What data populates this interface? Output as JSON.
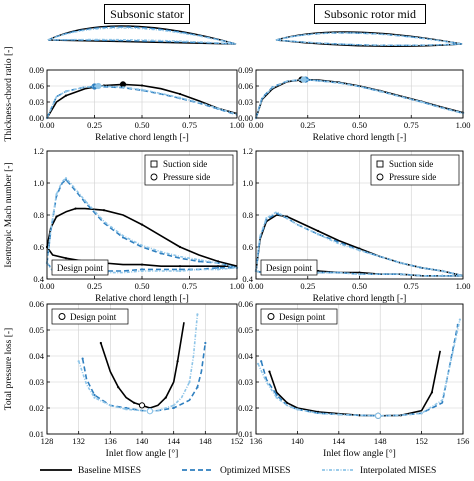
{
  "headers": {
    "left": "Subsonic stator",
    "right": "Subsonic rotor mid"
  },
  "colors": {
    "baseline": "#000000",
    "optimized": "#2f7fbf",
    "interpolated": "#8fc5e8"
  },
  "legend": {
    "baseline": "Baseline MISES",
    "optimized": "Optimized MISES",
    "interpolated": "Interpolated MISES"
  },
  "chart_data": [
    {
      "id": "stator-thickness",
      "type": "line",
      "xlabel": "Relative chord length [-]",
      "ylabel": "Thickness-chord ratio [-]",
      "xlim": [
        0,
        1
      ],
      "ylim": [
        0,
        0.09
      ],
      "xticks": [
        "0.00",
        "0.25",
        "0.50",
        "0.75",
        "1.00"
      ],
      "yticks": [
        "0.00",
        "0.03",
        "0.06",
        "0.09"
      ],
      "grid": true,
      "series": [
        {
          "name": "Baseline MISES",
          "x": [
            0,
            0.05,
            0.1,
            0.2,
            0.3,
            0.4,
            0.5,
            0.6,
            0.7,
            0.8,
            0.9,
            1.0
          ],
          "y": [
            0,
            0.03,
            0.042,
            0.055,
            0.061,
            0.063,
            0.061,
            0.055,
            0.045,
            0.032,
            0.018,
            0.008
          ],
          "marker": {
            "x": 0.4,
            "y": 0.063
          }
        },
        {
          "name": "Optimized MISES",
          "x": [
            0,
            0.05,
            0.1,
            0.2,
            0.27,
            0.4,
            0.5,
            0.6,
            0.7,
            0.8,
            0.9,
            1.0
          ],
          "y": [
            0,
            0.04,
            0.05,
            0.058,
            0.059,
            0.057,
            0.052,
            0.045,
            0.037,
            0.028,
            0.017,
            0.006
          ],
          "marker": {
            "x": 0.25,
            "y": 0.059
          }
        },
        {
          "name": "Interpolated MISES",
          "x": [
            0,
            0.05,
            0.1,
            0.2,
            0.27,
            0.4,
            0.5,
            0.6,
            0.7,
            0.8,
            0.9,
            1.0
          ],
          "y": [
            0,
            0.04,
            0.05,
            0.058,
            0.06,
            0.058,
            0.053,
            0.046,
            0.038,
            0.029,
            0.018,
            0.007
          ],
          "marker": {
            "x": 0.27,
            "y": 0.06
          }
        }
      ]
    },
    {
      "id": "rotor-thickness",
      "type": "line",
      "xlabel": "Relative chord length [-]",
      "ylabel": "",
      "xlim": [
        0,
        1
      ],
      "ylim": [
        0,
        0.09
      ],
      "xticks": [
        "0.00",
        "0.25",
        "0.50",
        "0.75",
        "1.00"
      ],
      "yticks": [
        "0.00",
        "0.03",
        "0.06",
        "0.09"
      ],
      "grid": true,
      "series": [
        {
          "name": "Baseline MISES",
          "x": [
            0,
            0.03,
            0.08,
            0.15,
            0.23,
            0.3,
            0.4,
            0.5,
            0.6,
            0.7,
            0.8,
            0.9,
            1.0
          ],
          "y": [
            0,
            0.035,
            0.055,
            0.068,
            0.072,
            0.071,
            0.067,
            0.06,
            0.051,
            0.041,
            0.031,
            0.02,
            0.01
          ],
          "marker": {
            "x": 0.22,
            "y": 0.072
          }
        },
        {
          "name": "Optimized MISES",
          "x": [
            0,
            0.03,
            0.08,
            0.15,
            0.23,
            0.3,
            0.4,
            0.5,
            0.6,
            0.7,
            0.8,
            0.9,
            1.0
          ],
          "y": [
            0,
            0.038,
            0.058,
            0.069,
            0.072,
            0.07,
            0.066,
            0.059,
            0.05,
            0.04,
            0.03,
            0.019,
            0.009
          ],
          "marker": {
            "x": 0.24,
            "y": 0.072
          }
        },
        {
          "name": "Interpolated MISES",
          "x": [
            0,
            0.03,
            0.08,
            0.15,
            0.23,
            0.3,
            0.4,
            0.5,
            0.6,
            0.7,
            0.8,
            0.9,
            1.0
          ],
          "y": [
            0,
            0.037,
            0.057,
            0.069,
            0.072,
            0.07,
            0.066,
            0.059,
            0.05,
            0.04,
            0.03,
            0.019,
            0.009
          ],
          "marker": {
            "x": 0.23,
            "y": 0.072
          }
        }
      ]
    },
    {
      "id": "stator-mach",
      "type": "line",
      "xlabel": "Relative chord length [-]",
      "ylabel": "Isentropic Mach number [-]",
      "xlim": [
        0,
        1
      ],
      "ylim": [
        0.4,
        1.2
      ],
      "xticks": [
        "0.00",
        "0.25",
        "0.50",
        "0.75",
        "1.00"
      ],
      "yticks": [
        "0.4",
        "0.6",
        "0.8",
        "1.0",
        "1.2"
      ],
      "grid": true,
      "legend": {
        "suction": "Suction side",
        "pressure": "Pressure side",
        "placement": "top-right"
      },
      "annotation": "Design point",
      "series": [
        {
          "name": "Baseline MISES suction",
          "x": [
            0,
            0.02,
            0.05,
            0.1,
            0.15,
            0.2,
            0.3,
            0.4,
            0.5,
            0.6,
            0.7,
            0.8,
            0.9,
            1.0
          ],
          "y": [
            0.6,
            0.72,
            0.79,
            0.82,
            0.84,
            0.84,
            0.83,
            0.8,
            0.74,
            0.67,
            0.6,
            0.55,
            0.51,
            0.48
          ]
        },
        {
          "name": "Baseline MISES pressure",
          "x": [
            0,
            0.03,
            0.1,
            0.2,
            0.3,
            0.4,
            0.5,
            0.6,
            0.7,
            0.8,
            0.9,
            1.0
          ],
          "y": [
            0.6,
            0.55,
            0.53,
            0.51,
            0.5,
            0.49,
            0.49,
            0.48,
            0.48,
            0.48,
            0.48,
            0.48
          ]
        },
        {
          "name": "Optimized MISES suction",
          "x": [
            0,
            0.02,
            0.05,
            0.08,
            0.1,
            0.13,
            0.2,
            0.3,
            0.4,
            0.5,
            0.6,
            0.7,
            0.8,
            0.9,
            1.0
          ],
          "y": [
            0.5,
            0.7,
            0.92,
            1.0,
            1.02,
            0.98,
            0.88,
            0.75,
            0.66,
            0.6,
            0.56,
            0.53,
            0.51,
            0.5,
            0.47
          ]
        },
        {
          "name": "Optimized MISES pressure",
          "x": [
            0,
            0.03,
            0.1,
            0.2,
            0.3,
            0.4,
            0.5,
            0.6,
            0.7,
            0.8,
            0.9,
            1.0
          ],
          "y": [
            0.5,
            0.46,
            0.45,
            0.45,
            0.45,
            0.45,
            0.46,
            0.46,
            0.46,
            0.46,
            0.47,
            0.47
          ]
        },
        {
          "name": "Interpolated MISES suction",
          "x": [
            0,
            0.02,
            0.05,
            0.08,
            0.1,
            0.13,
            0.2,
            0.3,
            0.4,
            0.5,
            0.6,
            0.7,
            0.8,
            0.9,
            1.0
          ],
          "y": [
            0.5,
            0.71,
            0.93,
            1.01,
            1.03,
            0.99,
            0.89,
            0.76,
            0.67,
            0.61,
            0.57,
            0.54,
            0.52,
            0.5,
            0.47
          ]
        },
        {
          "name": "Interpolated MISES pressure",
          "x": [
            0,
            0.03,
            0.1,
            0.2,
            0.3,
            0.4,
            0.5,
            0.6,
            0.7,
            0.8,
            0.9,
            1.0
          ],
          "y": [
            0.5,
            0.45,
            0.44,
            0.44,
            0.44,
            0.44,
            0.45,
            0.45,
            0.45,
            0.46,
            0.46,
            0.47
          ]
        }
      ]
    },
    {
      "id": "rotor-mach",
      "type": "line",
      "xlabel": "Relative chord length [-]",
      "ylabel": "",
      "xlim": [
        0,
        1
      ],
      "ylim": [
        0.4,
        1.2
      ],
      "xticks": [
        "0.00",
        "0.25",
        "0.50",
        "0.75",
        "1.00"
      ],
      "yticks": [
        "0.4",
        "0.6",
        "0.8",
        "1.0",
        "1.2"
      ],
      "grid": true,
      "legend": {
        "suction": "Suction side",
        "pressure": "Pressure side",
        "placement": "top-right"
      },
      "annotation": "Design point",
      "series": [
        {
          "name": "Baseline MISES suction",
          "x": [
            0,
            0.02,
            0.05,
            0.1,
            0.15,
            0.2,
            0.3,
            0.4,
            0.5,
            0.6,
            0.7,
            0.8,
            0.9,
            1.0
          ],
          "y": [
            0.45,
            0.65,
            0.76,
            0.8,
            0.79,
            0.76,
            0.7,
            0.64,
            0.59,
            0.54,
            0.5,
            0.47,
            0.45,
            0.42
          ]
        },
        {
          "name": "Baseline MISES pressure",
          "x": [
            0,
            0.03,
            0.1,
            0.2,
            0.3,
            0.4,
            0.5,
            0.6,
            0.7,
            0.8,
            0.9,
            1.0
          ],
          "y": [
            0.45,
            0.44,
            0.45,
            0.45,
            0.45,
            0.44,
            0.44,
            0.43,
            0.43,
            0.42,
            0.42,
            0.42
          ]
        },
        {
          "name": "Optimized MISES suction",
          "x": [
            0,
            0.02,
            0.05,
            0.1,
            0.15,
            0.2,
            0.3,
            0.4,
            0.5,
            0.6,
            0.7,
            0.8,
            0.9,
            1.0
          ],
          "y": [
            0.45,
            0.66,
            0.77,
            0.81,
            0.78,
            0.74,
            0.68,
            0.63,
            0.58,
            0.54,
            0.5,
            0.47,
            0.45,
            0.42
          ]
        },
        {
          "name": "Optimized MISES pressure",
          "x": [
            0,
            0.03,
            0.1,
            0.2,
            0.3,
            0.4,
            0.5,
            0.6,
            0.7,
            0.8,
            0.9,
            1.0
          ],
          "y": [
            0.45,
            0.44,
            0.44,
            0.44,
            0.44,
            0.44,
            0.43,
            0.43,
            0.43,
            0.42,
            0.42,
            0.42
          ]
        },
        {
          "name": "Interpolated MISES suction",
          "x": [
            0,
            0.02,
            0.05,
            0.1,
            0.15,
            0.2,
            0.3,
            0.4,
            0.5,
            0.6,
            0.7,
            0.8,
            0.9,
            1.0
          ],
          "y": [
            0.45,
            0.67,
            0.78,
            0.82,
            0.78,
            0.74,
            0.68,
            0.62,
            0.58,
            0.54,
            0.5,
            0.47,
            0.45,
            0.42
          ]
        },
        {
          "name": "Interpolated MISES pressure",
          "x": [
            0,
            0.03,
            0.1,
            0.2,
            0.3,
            0.4,
            0.5,
            0.6,
            0.7,
            0.8,
            0.9,
            1.0
          ],
          "y": [
            0.45,
            0.44,
            0.44,
            0.44,
            0.44,
            0.44,
            0.43,
            0.43,
            0.43,
            0.42,
            0.42,
            0.42
          ]
        }
      ]
    },
    {
      "id": "stator-loss",
      "type": "line",
      "xlabel": "Inlet flow angle [°]",
      "ylabel": "Total pressure loss [-]",
      "xlim": [
        128,
        152
      ],
      "ylim": [
        0.01,
        0.06
      ],
      "xticks": [
        "128",
        "132",
        "136",
        "140",
        "144",
        "148",
        "152"
      ],
      "yticks": [
        "0.01",
        "0.02",
        "0.03",
        "0.04",
        "0.05",
        "0.06"
      ],
      "grid": true,
      "legend": {
        "design": "Design point",
        "placement": "top-left"
      },
      "series": [
        {
          "name": "Baseline MISES",
          "x": [
            134.8,
            136,
            137,
            138,
            139,
            140,
            141,
            142,
            143,
            144,
            144.5,
            145.3
          ],
          "y": [
            0.045,
            0.034,
            0.028,
            0.024,
            0.022,
            0.021,
            0.02,
            0.021,
            0.024,
            0.03,
            0.038,
            0.053
          ],
          "marker": {
            "x": 140,
            "y": 0.021
          }
        },
        {
          "name": "Optimized MISES",
          "x": [
            132.5,
            133,
            134,
            136,
            138,
            140,
            141,
            142,
            144,
            146,
            147,
            147.5,
            148
          ],
          "y": [
            0.039,
            0.031,
            0.025,
            0.021,
            0.02,
            0.019,
            0.0188,
            0.019,
            0.02,
            0.023,
            0.028,
            0.034,
            0.045
          ],
          "marker": {
            "x": 141,
            "y": 0.0188
          }
        },
        {
          "name": "Interpolated MISES",
          "x": [
            132,
            133,
            134,
            136,
            138,
            140,
            141,
            142,
            144,
            145,
            146,
            146.5,
            147
          ],
          "y": [
            0.038,
            0.029,
            0.024,
            0.021,
            0.0195,
            0.019,
            0.0188,
            0.019,
            0.021,
            0.024,
            0.03,
            0.04,
            0.056
          ],
          "marker": {
            "x": 141,
            "y": 0.0188
          }
        }
      ]
    },
    {
      "id": "rotor-loss",
      "type": "line",
      "xlabel": "Inlet flow angle [°]",
      "ylabel": "",
      "xlim": [
        136,
        156
      ],
      "ylim": [
        0.01,
        0.06
      ],
      "xticks": [
        "136",
        "140",
        "144",
        "148",
        "152",
        "156"
      ],
      "yticks": [
        "0.01",
        "0.02",
        "0.03",
        "0.04",
        "0.05",
        "0.06"
      ],
      "grid": true,
      "legend": {
        "design": "Design point",
        "placement": "top-left"
      },
      "series": [
        {
          "name": "Baseline MISES",
          "x": [
            137.3,
            138,
            139,
            140,
            142,
            144,
            146,
            148,
            150,
            152,
            153,
            153.8
          ],
          "y": [
            0.034,
            0.026,
            0.022,
            0.02,
            0.0185,
            0.0178,
            0.0172,
            0.017,
            0.0172,
            0.019,
            0.026,
            0.042
          ],
          "marker": {
            "x": 147.8,
            "y": 0.017
          }
        },
        {
          "name": "Optimized MISES",
          "x": [
            136.5,
            137,
            138,
            139,
            140,
            142,
            144,
            146,
            148,
            150,
            152,
            154,
            155.5
          ],
          "y": [
            0.038,
            0.031,
            0.025,
            0.021,
            0.0195,
            0.018,
            0.0175,
            0.0172,
            0.017,
            0.0172,
            0.018,
            0.022,
            0.052
          ],
          "marker": {
            "x": 147.8,
            "y": 0.017
          }
        },
        {
          "name": "Interpolated MISES",
          "x": [
            136.2,
            137,
            138,
            139,
            140,
            142,
            144,
            146,
            148,
            150,
            152,
            154,
            155.7
          ],
          "y": [
            0.037,
            0.03,
            0.024,
            0.021,
            0.0195,
            0.018,
            0.0175,
            0.0172,
            0.017,
            0.0172,
            0.018,
            0.023,
            0.054
          ],
          "marker": {
            "x": 147.8,
            "y": 0.017
          }
        }
      ]
    }
  ]
}
